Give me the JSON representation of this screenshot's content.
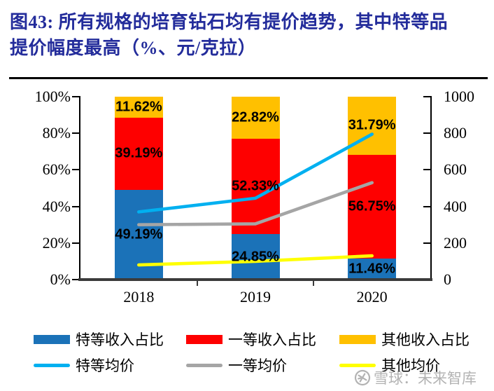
{
  "title": {
    "line1": "图43:  所有规格的培育钻石均有提价趋势，其中特等品",
    "line2": "提价幅度最高（%、元/克拉）",
    "color": "#232C9B"
  },
  "watermark": {
    "icon": "xueqiu-snowball-logo",
    "text": "雪球：未来智库",
    "color": "#B3B3B3"
  },
  "chart_data": {
    "type": "stacked-bar-line-combo",
    "title": "图43: 所有规格的培育钻石均有提价趋势，其中特等品提价幅度最高（%、元/克拉）",
    "categories": [
      "2018",
      "2019",
      "2020"
    ],
    "bar_series": [
      {
        "name": "特等收入占比",
        "color": "#1B72B8",
        "values": [
          49.19,
          24.85,
          11.46
        ],
        "labels": [
          "49.19%",
          "24.85%",
          "11.46%"
        ]
      },
      {
        "name": "一等收入占比",
        "color": "#FE0000",
        "values": [
          39.19,
          52.33,
          56.75
        ],
        "labels": [
          "39.19%",
          "52.33%",
          "56.75%"
        ]
      },
      {
        "name": "其他收入占比",
        "color": "#FFC000",
        "values": [
          11.62,
          22.82,
          31.79
        ],
        "labels": [
          "11.62%",
          "22.82%",
          "31.79%"
        ]
      }
    ],
    "line_series": [
      {
        "name": "特等均价",
        "color": "#00B0F0",
        "values": [
          370,
          445,
          795
        ]
      },
      {
        "name": "一等均价",
        "color": "#A5A5A5",
        "values": [
          300,
          305,
          530
        ]
      },
      {
        "name": "其他均价",
        "color": "#FFFF00",
        "values": [
          80,
          100,
          130
        ]
      }
    ],
    "left_axis": {
      "unit": "%",
      "min": 0,
      "max": 100,
      "ticks": [
        "100%",
        "80%",
        "60%",
        "40%",
        "20%",
        "0%"
      ]
    },
    "right_axis": {
      "unit": "元/克拉",
      "min": 0,
      "max": 1000,
      "ticks": [
        "1000",
        "800",
        "600",
        "400",
        "200",
        "0"
      ]
    },
    "grid": false,
    "legend_position": "bottom",
    "stacked": true
  }
}
